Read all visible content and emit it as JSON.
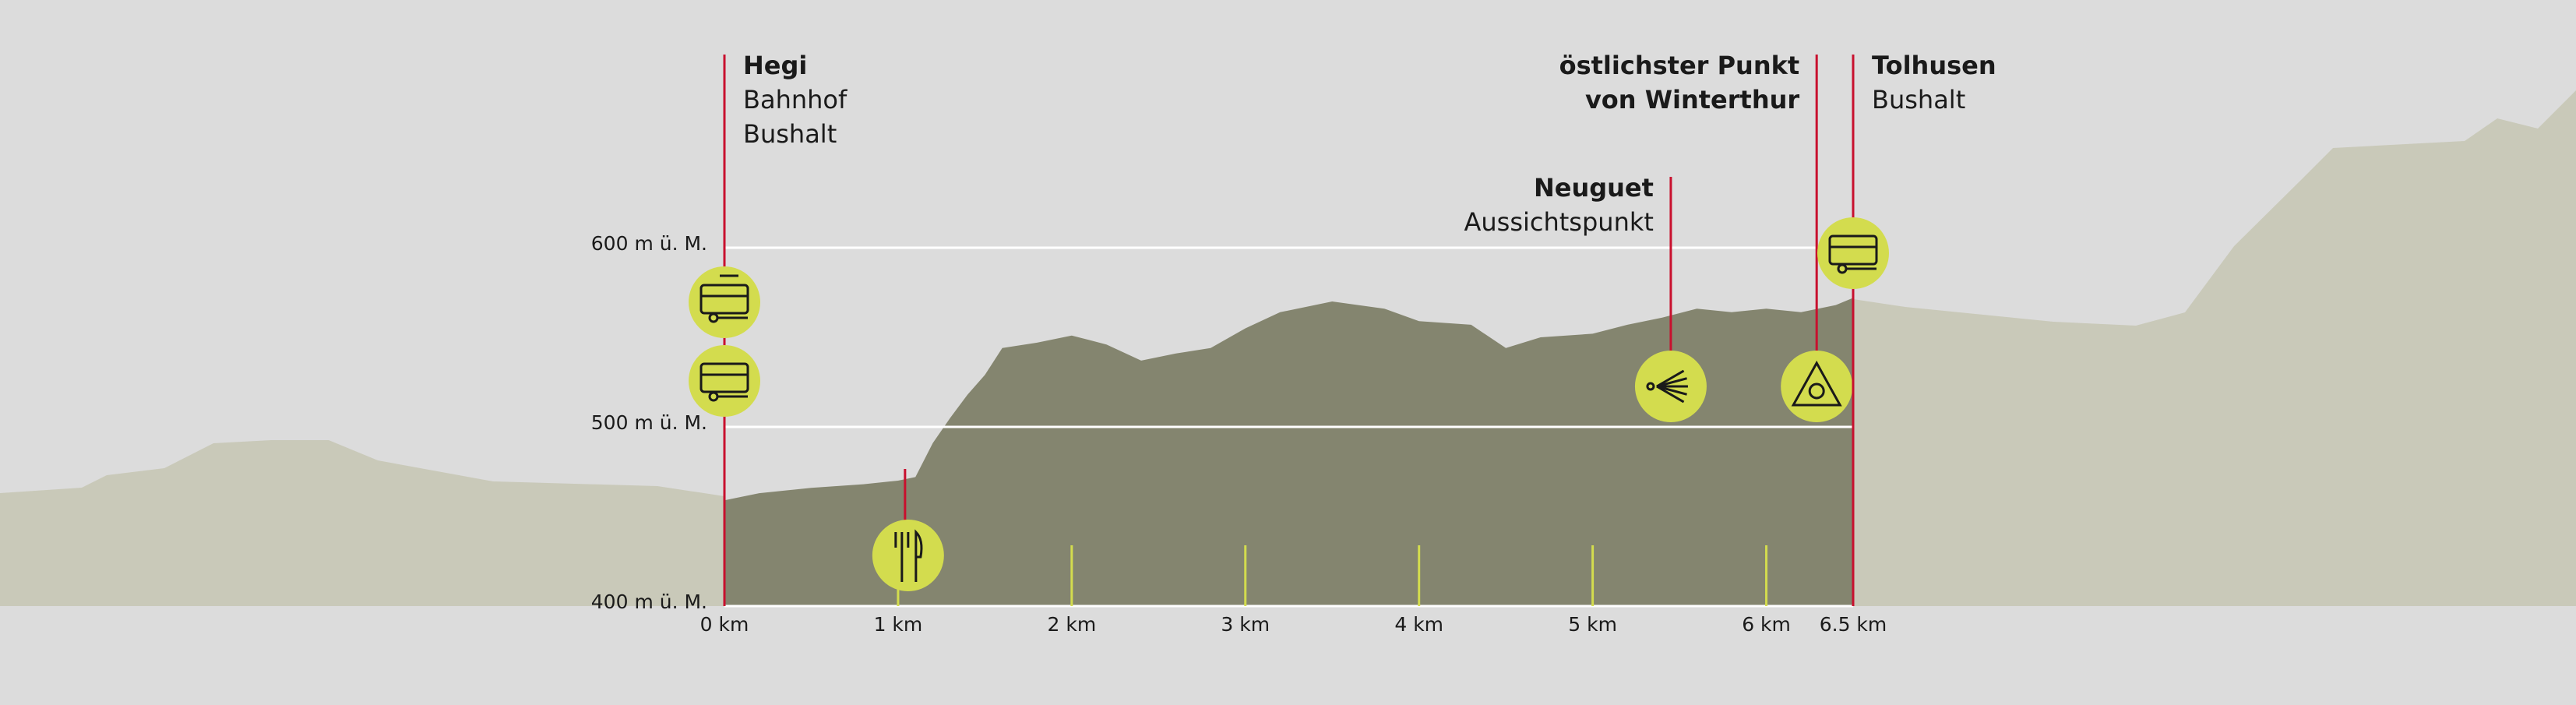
{
  "chart_data": {
    "type": "area",
    "x": [
      0,
      0.2,
      0.5,
      0.8,
      1.0,
      1.1,
      1.2,
      1.3,
      1.4,
      1.5,
      1.6,
      1.8,
      2.0,
      2.2,
      2.4,
      2.6,
      2.8,
      3.0,
      3.2,
      3.5,
      3.8,
      4.0,
      4.3,
      4.5,
      4.7,
      5.0,
      5.2,
      5.4,
      5.6,
      5.8,
      6.0,
      6.2,
      6.4,
      6.5
    ],
    "values": [
      459,
      463,
      466,
      468,
      470,
      472,
      491,
      505,
      518,
      529,
      544,
      547,
      551,
      546,
      537,
      541,
      544,
      555,
      564,
      570,
      566,
      559,
      557,
      544,
      550,
      552,
      557,
      561,
      566,
      564,
      566,
      564,
      568,
      572
    ],
    "color": "#84856f",
    "xlim": [
      0,
      6.5
    ],
    "xticks": [
      {
        "value": 0,
        "label": "0 km"
      },
      {
        "value": 1,
        "label": "1 km"
      },
      {
        "value": 2,
        "label": "2 km"
      },
      {
        "value": 3,
        "label": "3 km"
      },
      {
        "value": 4,
        "label": "4 km"
      },
      {
        "value": 5,
        "label": "5 km"
      },
      {
        "value": 6,
        "label": "6 km"
      },
      {
        "value": 6.5,
        "label": "6.5 km"
      }
    ],
    "ylim": [
      400,
      600
    ],
    "yticks": [
      {
        "value": 400,
        "label": "400 m ü. M."
      },
      {
        "value": 500,
        "label": "500 m ü. M."
      },
      {
        "value": 600,
        "label": "600 m ü. M."
      }
    ],
    "grid": true,
    "annotations": [
      {
        "x": 0,
        "title": [
          "Hegi"
        ],
        "subtitle": [
          "Bahnhof",
          "Bushalt"
        ]
      },
      {
        "x": 1.04
      },
      {
        "x": 5.45,
        "title": [
          "Neuguet"
        ],
        "subtitle": [
          "Aussichtspunkt"
        ]
      },
      {
        "x": 6.29,
        "title": [
          "östlichster Punkt",
          "von Winterthur"
        ]
      },
      {
        "x": 6.5,
        "title": [
          "Tolhusen"
        ],
        "subtitle": [
          "Bushalt"
        ]
      }
    ]
  }
}
